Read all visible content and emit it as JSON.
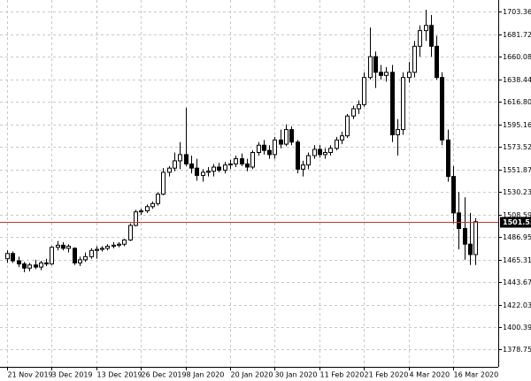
{
  "chart_data": {
    "type": "candlestick",
    "categories": [
      "21 Nov 2019",
      null,
      null,
      null,
      null,
      null,
      null,
      null,
      "3 Dec 2019",
      null,
      null,
      null,
      null,
      null,
      null,
      null,
      "13 Dec 2019",
      null,
      null,
      null,
      null,
      null,
      null,
      null,
      "26 Dec 2019",
      null,
      null,
      null,
      null,
      null,
      null,
      null,
      "8 Jan 2020",
      null,
      null,
      null,
      null,
      null,
      null,
      null,
      "20 Jan 2020",
      null,
      null,
      null,
      null,
      null,
      null,
      null,
      "30 Jan 2020",
      null,
      null,
      null,
      null,
      null,
      null,
      null,
      "11 Feb 2020",
      null,
      null,
      null,
      null,
      null,
      null,
      null,
      "21 Feb 2020",
      null,
      null,
      null,
      null,
      null,
      null,
      null,
      "4 Mar 2020",
      null,
      null,
      null,
      null,
      null,
      null,
      null,
      "16 Mar 2020",
      null,
      null,
      null,
      null
    ],
    "open": [
      1466,
      1471,
      1464,
      1461,
      1457,
      1460,
      1458,
      1462,
      1461,
      1477,
      1479,
      1476,
      1476,
      1462,
      1465,
      1468,
      1474,
      1475,
      1476,
      1478,
      1479,
      1480,
      1484,
      1498,
      1511,
      1512,
      1516,
      1519,
      1528,
      1549,
      1553,
      1560,
      1566,
      1557,
      1553,
      1546,
      1549,
      1550,
      1554,
      1551,
      1556,
      1557,
      1562,
      1557,
      1554,
      1568,
      1575,
      1570,
      1566,
      1580,
      1576,
      1590,
      1578,
      1552,
      1556,
      1565,
      1571,
      1566,
      1568,
      1572,
      1580,
      1584,
      1603,
      1610,
      1614,
      1640,
      1660,
      1645,
      1642,
      1645,
      1585,
      1590,
      1640,
      1645,
      1670,
      1685,
      1690,
      1670,
      1640,
      1580,
      1545,
      1510,
      1495,
      1480,
      1470
    ],
    "high": [
      1474,
      1473,
      1468,
      1463,
      1462,
      1465,
      1464,
      1466,
      1478,
      1483,
      1482,
      1480,
      1477,
      1468,
      1472,
      1476,
      1478,
      1478,
      1480,
      1482,
      1482,
      1485,
      1500,
      1513,
      1514,
      1518,
      1521,
      1530,
      1553,
      1555,
      1568,
      1578,
      1611,
      1565,
      1562,
      1552,
      1554,
      1557,
      1558,
      1559,
      1561,
      1565,
      1567,
      1562,
      1570,
      1578,
      1580,
      1575,
      1583,
      1590,
      1595,
      1593,
      1580,
      1560,
      1568,
      1575,
      1575,
      1572,
      1575,
      1583,
      1588,
      1605,
      1613,
      1618,
      1645,
      1688,
      1665,
      1652,
      1650,
      1652,
      1600,
      1645,
      1655,
      1675,
      1690,
      1705,
      1700,
      1680,
      1645,
      1590,
      1555,
      1530,
      1525,
      1510,
      1505
    ],
    "low": [
      1462,
      1462,
      1458,
      1453,
      1454,
      1456,
      1455,
      1459,
      1460,
      1474,
      1474,
      1472,
      1460,
      1459,
      1463,
      1466,
      1466,
      1473,
      1474,
      1476,
      1477,
      1478,
      1483,
      1497,
      1508,
      1510,
      1514,
      1517,
      1527,
      1545,
      1550,
      1552,
      1555,
      1548,
      1541,
      1540,
      1545,
      1545,
      1549,
      1548,
      1552,
      1554,
      1555,
      1550,
      1552,
      1565,
      1566,
      1562,
      1562,
      1572,
      1574,
      1575,
      1548,
      1545,
      1552,
      1562,
      1563,
      1562,
      1565,
      1570,
      1576,
      1582,
      1600,
      1605,
      1612,
      1638,
      1630,
      1638,
      1636,
      1578,
      1565,
      1585,
      1635,
      1640,
      1660,
      1675,
      1660,
      1638,
      1575,
      1540,
      1500,
      1475,
      1465,
      1460,
      1460
    ],
    "close": [
      1471,
      1464,
      1461,
      1457,
      1460,
      1458,
      1462,
      1461,
      1477,
      1479,
      1476,
      1478,
      1462,
      1465,
      1468,
      1474,
      1475,
      1476,
      1478,
      1479,
      1480,
      1484,
      1498,
      1511,
      1512,
      1516,
      1519,
      1528,
      1549,
      1553,
      1560,
      1566,
      1557,
      1553,
      1546,
      1549,
      1550,
      1554,
      1551,
      1556,
      1557,
      1562,
      1557,
      1554,
      1568,
      1575,
      1570,
      1566,
      1580,
      1576,
      1590,
      1578,
      1552,
      1556,
      1565,
      1571,
      1566,
      1568,
      1572,
      1580,
      1584,
      1603,
      1610,
      1614,
      1640,
      1660,
      1645,
      1642,
      1645,
      1585,
      1590,
      1640,
      1645,
      1670,
      1685,
      1690,
      1670,
      1640,
      1580,
      1545,
      1510,
      1495,
      1480,
      1470,
      1501.53
    ],
    "current_price": 1501.53,
    "current_price_color": "#c0392b",
    "up_color": "#ffffff",
    "down_color": "#000000",
    "ylim": [
      1362.2,
      1714.4
    ],
    "yticks": [
      1703.36,
      1681.72,
      1660.08,
      1638.44,
      {
        "value": 1616.8,
        "label": "1616.80"
      },
      1595.16,
      1573.52,
      1551.87,
      1530.23,
      1508.59,
      1486.95,
      1465.31,
      1443.67,
      1422.03,
      1400.39,
      1378.75
    ],
    "grid": true
  }
}
